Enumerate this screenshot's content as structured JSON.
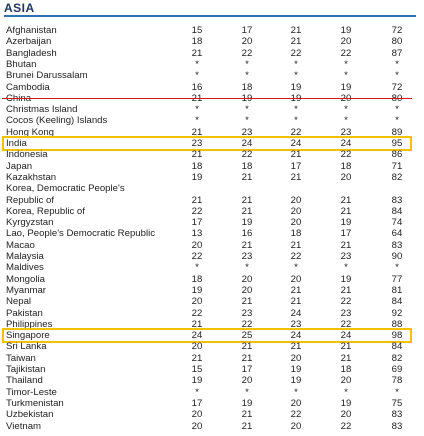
{
  "header": {
    "title": "ASIA"
  },
  "table": {
    "rows": [
      {
        "name": "Afghanistan",
        "values": [
          "15",
          "17",
          "21",
          "19",
          "72"
        ]
      },
      {
        "name": "Azerbaijan",
        "values": [
          "18",
          "20",
          "21",
          "20",
          "80"
        ]
      },
      {
        "name": "Bangladesh",
        "values": [
          "21",
          "22",
          "22",
          "22",
          "87"
        ]
      },
      {
        "name": "Bhutan",
        "values": [
          "*",
          "*",
          "*",
          "*",
          "*"
        ]
      },
      {
        "name": "Brunei Darussalam",
        "values": [
          "*",
          "*",
          "*",
          "*",
          "*"
        ]
      },
      {
        "name": "Cambodia",
        "values": [
          "16",
          "18",
          "19",
          "19",
          "72"
        ]
      },
      {
        "name": "China",
        "values": [
          "21",
          "19",
          "19",
          "20",
          "80"
        ]
      },
      {
        "name": "Christmas Island",
        "values": [
          "*",
          "*",
          "*",
          "*",
          "*"
        ]
      },
      {
        "name": "Cocos (Keeling) Islands",
        "values": [
          "*",
          "*",
          "*",
          "*",
          "*"
        ]
      },
      {
        "name": "Hong Kong",
        "values": [
          "21",
          "23",
          "22",
          "23",
          "89"
        ]
      },
      {
        "name": "India",
        "values": [
          "23",
          "24",
          "24",
          "24",
          "95"
        ]
      },
      {
        "name": "Indonesia",
        "values": [
          "21",
          "22",
          "21",
          "22",
          "86"
        ]
      },
      {
        "name": "Japan",
        "values": [
          "18",
          "18",
          "17",
          "18",
          "71"
        ]
      },
      {
        "name": "Kazakhstan",
        "values": [
          "19",
          "21",
          "21",
          "20",
          "82"
        ]
      },
      {
        "name": "Korea, Democratic People's",
        "values": []
      },
      {
        "name": "Republic of",
        "values": [
          "21",
          "21",
          "20",
          "21",
          "83"
        ]
      },
      {
        "name": "Korea, Republic of",
        "values": [
          "22",
          "21",
          "20",
          "21",
          "84"
        ]
      },
      {
        "name": "Kyrgyzstan",
        "values": [
          "17",
          "19",
          "20",
          "19",
          "74"
        ]
      },
      {
        "name": "Lao, People's Democratic Republic",
        "values": [
          "13",
          "16",
          "18",
          "17",
          "64"
        ]
      },
      {
        "name": "Macao",
        "values": [
          "20",
          "21",
          "21",
          "21",
          "83"
        ]
      },
      {
        "name": "Malaysia",
        "values": [
          "22",
          "23",
          "22",
          "23",
          "90"
        ]
      },
      {
        "name": "Maldives",
        "values": [
          "*",
          "*",
          "*",
          "*",
          "*"
        ]
      },
      {
        "name": "Mongolia",
        "values": [
          "18",
          "20",
          "20",
          "19",
          "77"
        ]
      },
      {
        "name": "Myanmar",
        "values": [
          "19",
          "20",
          "21",
          "21",
          "81"
        ]
      },
      {
        "name": "Nepal",
        "values": [
          "20",
          "21",
          "21",
          "22",
          "84"
        ]
      },
      {
        "name": "Pakistan",
        "values": [
          "22",
          "23",
          "24",
          "23",
          "92"
        ]
      },
      {
        "name": "Philippines",
        "values": [
          "21",
          "22",
          "23",
          "22",
          "88"
        ]
      },
      {
        "name": "Singapore",
        "values": [
          "24",
          "25",
          "24",
          "24",
          "98"
        ]
      },
      {
        "name": "Sri Lanka",
        "values": [
          "20",
          "21",
          "21",
          "21",
          "84"
        ]
      },
      {
        "name": "Taiwan",
        "values": [
          "21",
          "21",
          "20",
          "21",
          "82"
        ]
      },
      {
        "name": "Tajikistan",
        "values": [
          "15",
          "17",
          "19",
          "18",
          "69"
        ]
      },
      {
        "name": "Thailand",
        "values": [
          "19",
          "20",
          "19",
          "20",
          "78"
        ]
      },
      {
        "name": "Timor-Leste",
        "values": [
          "*",
          "*",
          "*",
          "*",
          "*"
        ]
      },
      {
        "name": "Turkmenistan",
        "values": [
          "17",
          "19",
          "20",
          "19",
          "75"
        ]
      },
      {
        "name": "Uzbekistan",
        "values": [
          "20",
          "21",
          "22",
          "20",
          "83"
        ]
      },
      {
        "name": "Vietnam",
        "values": [
          "20",
          "21",
          "20",
          "22",
          "83"
        ]
      }
    ]
  }
}
